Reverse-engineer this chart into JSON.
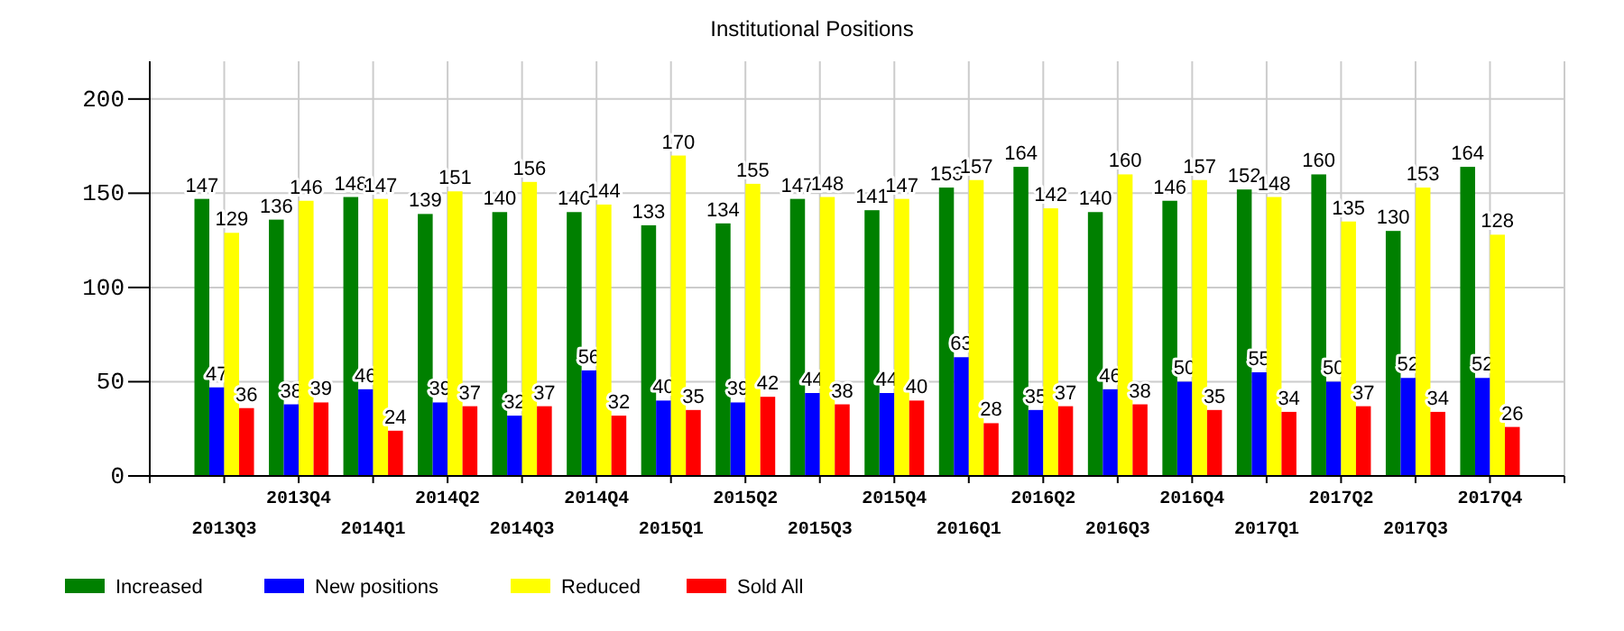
{
  "chart_data": {
    "type": "bar",
    "title": "Institutional Positions",
    "categories": [
      "2013Q3",
      "2013Q4",
      "2014Q1",
      "2014Q2",
      "2014Q3",
      "2014Q4",
      "2015Q1",
      "2015Q2",
      "2015Q3",
      "2015Q4",
      "2016Q1",
      "2016Q2",
      "2016Q3",
      "2016Q4",
      "2017Q1",
      "2017Q2",
      "2017Q3",
      "2017Q4"
    ],
    "series": [
      {
        "name": "Increased",
        "color": "#008000",
        "values": [
          147,
          136,
          148,
          139,
          140,
          140,
          133,
          134,
          147,
          141,
          153,
          164,
          140,
          146,
          152,
          160,
          130,
          164
        ]
      },
      {
        "name": "New positions",
        "color": "#0000ff",
        "values": [
          47,
          38,
          46,
          39,
          32,
          56,
          40,
          39,
          44,
          44,
          63,
          35,
          46,
          50,
          55,
          50,
          52,
          52
        ]
      },
      {
        "name": "Reduced",
        "color": "#ffff00",
        "values": [
          129,
          146,
          147,
          151,
          156,
          144,
          170,
          155,
          148,
          147,
          157,
          142,
          160,
          157,
          148,
          135,
          153,
          128
        ]
      },
      {
        "name": "Sold All",
        "color": "#ff0000",
        "values": [
          36,
          39,
          24,
          37,
          37,
          32,
          35,
          42,
          38,
          40,
          28,
          37,
          38,
          35,
          34,
          37,
          34,
          26
        ]
      }
    ],
    "ylim": [
      0,
      220
    ],
    "yticks": [
      0,
      50,
      100,
      150,
      200
    ],
    "grid": true,
    "data_labels": true,
    "legend": "bottom left"
  }
}
